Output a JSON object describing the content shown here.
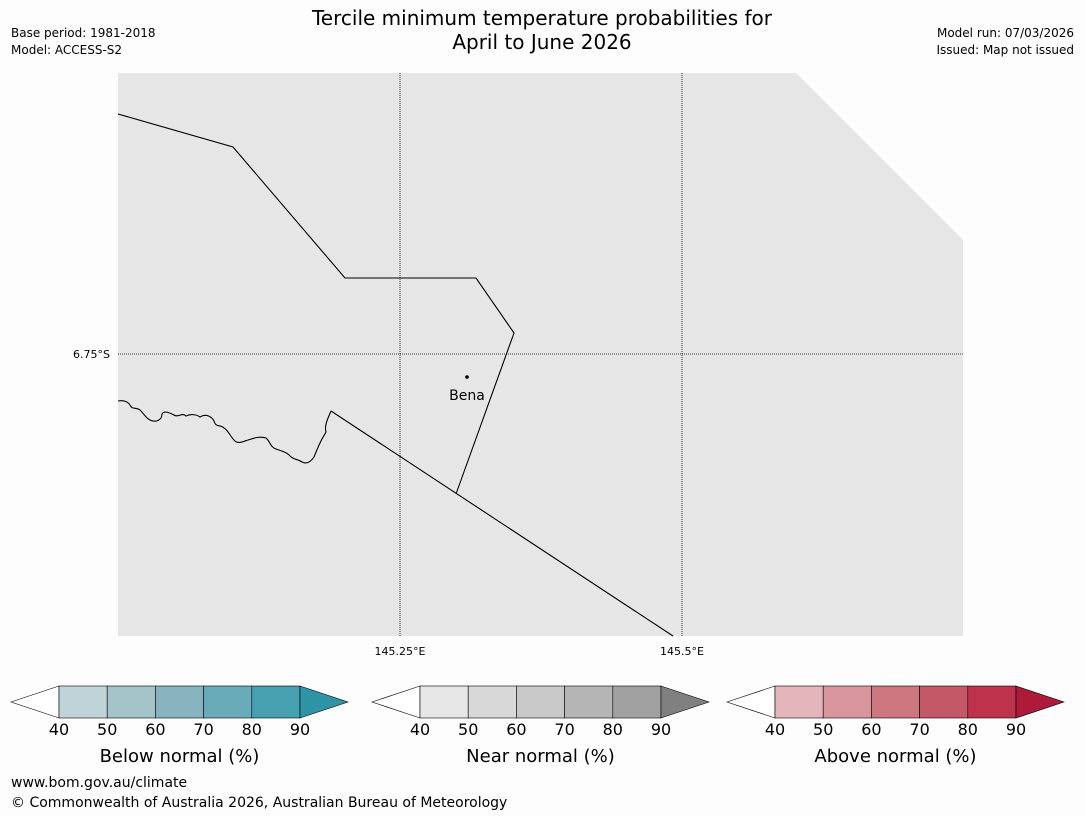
{
  "title": {
    "line1": "Tercile minimum temperature probabilities for",
    "line2": "April to June 2026"
  },
  "meta_left": {
    "base_period": "Base period: 1981-2018",
    "model": "Model: ACCESS-S2"
  },
  "meta_right": {
    "model_run": "Model run: 07/03/2026",
    "issued": "Issued: Map not issued"
  },
  "map": {
    "background_color": "#e6e6e6",
    "lat_label": "6.75°S",
    "lon_labels": [
      "145.25°E",
      "145.5°E"
    ],
    "place": "Bena"
  },
  "colorbars": [
    {
      "label": "Below normal (%)",
      "ticks": [
        "40",
        "50",
        "60",
        "70",
        "80",
        "90"
      ],
      "colors": [
        "#ffffff",
        "#bfd3d8",
        "#a5c4c9",
        "#87b4bf",
        "#6aabb9",
        "#47a0b0",
        "#2e93a5"
      ]
    },
    {
      "label": "Near normal (%)",
      "ticks": [
        "40",
        "50",
        "60",
        "70",
        "80",
        "90"
      ],
      "colors": [
        "#ffffff",
        "#e6e6e6",
        "#d8d8d8",
        "#c8c8c8",
        "#b5b5b5",
        "#a1a1a1",
        "#808080"
      ]
    },
    {
      "label": "Above normal (%)",
      "ticks": [
        "40",
        "50",
        "60",
        "70",
        "80",
        "90"
      ],
      "colors": [
        "#ffffff",
        "#e2b6bb",
        "#d8959c",
        "#cd7780",
        "#c35866",
        "#bc334b",
        "#ad1a3a"
      ]
    }
  ],
  "footer": {
    "url": "www.bom.gov.au/climate",
    "copyright": "© Commonwealth of Australia 2026, Australian Bureau of Meteorology"
  }
}
